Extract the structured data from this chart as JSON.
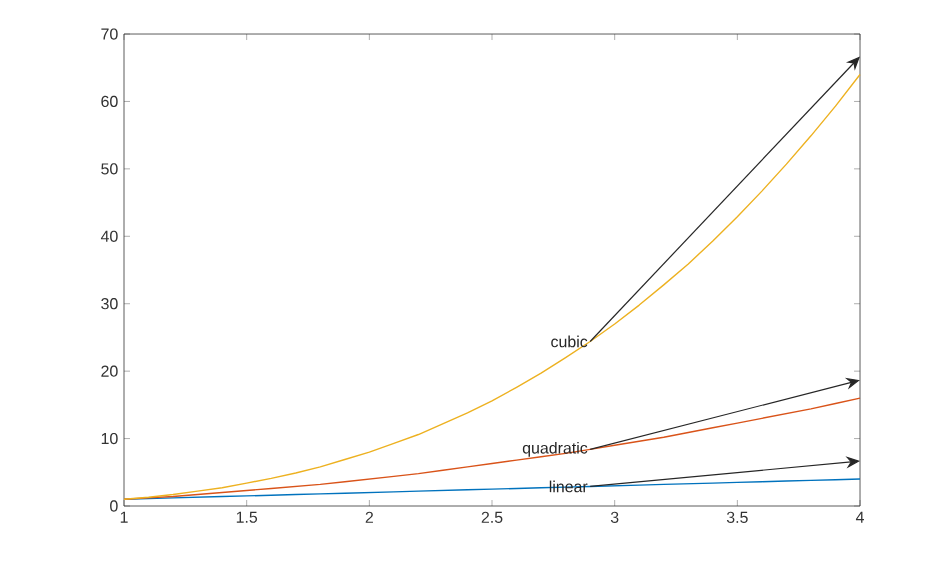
{
  "chart_data": {
    "type": "line",
    "x": [
      1,
      1.1,
      1.2,
      1.3,
      1.4,
      1.5,
      1.6,
      1.7,
      1.8,
      1.9,
      2,
      2.1,
      2.2,
      2.3,
      2.4,
      2.5,
      2.6,
      2.7,
      2.8,
      2.9,
      3,
      3.1,
      3.2,
      3.3,
      3.4,
      3.5,
      3.6,
      3.7,
      3.8,
      3.9,
      4
    ],
    "series": [
      {
        "color": "#0072bd",
        "values": [
          1,
          1.1,
          1.2,
          1.3,
          1.4,
          1.5,
          1.6,
          1.7,
          1.8,
          1.9,
          2,
          2.1,
          2.2,
          2.3,
          2.4,
          2.5,
          2.6,
          2.7,
          2.8,
          2.9,
          3,
          3.1,
          3.2,
          3.3,
          3.4,
          3.5,
          3.6,
          3.7,
          3.8,
          3.9,
          4
        ]
      },
      {
        "color": "#d95319",
        "values": [
          1,
          1.2,
          1.4,
          1.7,
          2,
          2.3,
          2.6,
          2.9,
          3.2,
          3.6,
          4,
          4.4,
          4.8,
          5.3,
          5.8,
          6.3,
          6.8,
          7.3,
          7.8,
          8.4,
          9,
          9.6,
          10.2,
          10.9,
          11.6,
          12.3,
          13,
          13.7,
          14.4,
          15.2,
          16
        ]
      },
      {
        "color": "#edb120",
        "values": [
          1,
          1.3,
          1.7,
          2.2,
          2.7,
          3.4,
          4.1,
          4.9,
          5.8,
          6.9,
          8,
          9.3,
          10.6,
          12.2,
          13.8,
          15.6,
          17.6,
          19.7,
          22,
          24.4,
          27,
          29.8,
          32.8,
          35.9,
          39.3,
          42.9,
          46.7,
          50.7,
          54.9,
          59.3,
          64
        ]
      }
    ],
    "annotations": [
      "linear",
      "quadratic",
      "cubic"
    ],
    "xlim": [
      1,
      4
    ],
    "ylim": [
      0,
      70
    ],
    "xticks": [
      1,
      1.5,
      2,
      2.5,
      3,
      3.5,
      4
    ],
    "yticks": [
      0,
      10,
      20,
      30,
      40,
      50,
      60,
      70
    ],
    "grid": false,
    "marker": "none",
    "line_style": "solid"
  }
}
